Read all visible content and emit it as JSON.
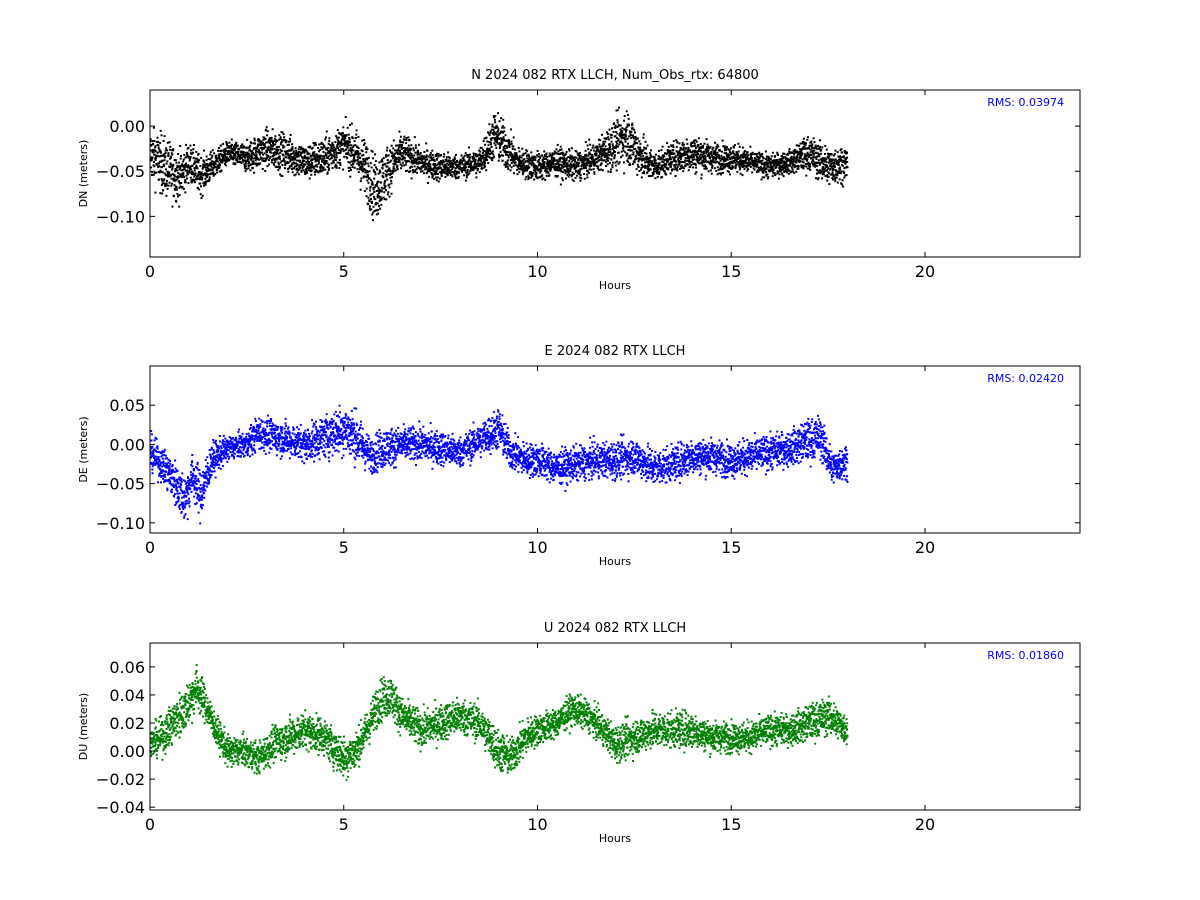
{
  "chart_data": [
    {
      "type": "scatter",
      "title": "N 2024 082 RTX  LLCH, Num_Obs_rtx: 64800",
      "xlabel": "Hours",
      "ylabel": "DN (meters)",
      "xlim": [
        0,
        24
      ],
      "ylim": [
        -0.145,
        0.04
      ],
      "xticks": [
        0,
        5,
        10,
        15,
        20
      ],
      "yticks": [
        0.0,
        -0.05,
        -0.1
      ],
      "ytick_labels": [
        "0.00",
        "−0.05",
        "−0.10"
      ],
      "color": "#000000",
      "rms_label": "RMS:  0.03974",
      "grid": false,
      "x_range_data": [
        0,
        18
      ],
      "profile": {
        "x": [
          0,
          0.25,
          0.5,
          0.8,
          1.0,
          1.3,
          1.6,
          2.0,
          2.5,
          3.0,
          3.5,
          4.0,
          4.5,
          5.0,
          5.3,
          5.6,
          5.8,
          6.0,
          6.2,
          6.5,
          7.0,
          7.5,
          8.0,
          8.5,
          8.9,
          9.1,
          9.5,
          10.0,
          10.5,
          11.0,
          11.5,
          12.0,
          12.3,
          12.6,
          13.0,
          13.5,
          14.0,
          14.5,
          15.0,
          15.5,
          16.0,
          16.5,
          17.0,
          17.5,
          18.0
        ],
        "center": [
          -0.03,
          -0.04,
          -0.05,
          -0.055,
          -0.04,
          -0.055,
          -0.045,
          -0.03,
          -0.035,
          -0.025,
          -0.03,
          -0.04,
          -0.035,
          -0.02,
          -0.03,
          -0.05,
          -0.07,
          -0.06,
          -0.045,
          -0.03,
          -0.04,
          -0.045,
          -0.045,
          -0.04,
          -0.01,
          -0.02,
          -0.04,
          -0.045,
          -0.04,
          -0.045,
          -0.035,
          -0.02,
          -0.01,
          -0.03,
          -0.045,
          -0.035,
          -0.03,
          -0.035,
          -0.035,
          -0.04,
          -0.045,
          -0.04,
          -0.03,
          -0.045,
          -0.04
        ],
        "spread": [
          0.025,
          0.03,
          0.03,
          0.025,
          0.02,
          0.02,
          0.015,
          0.012,
          0.015,
          0.02,
          0.02,
          0.018,
          0.02,
          0.02,
          0.025,
          0.03,
          0.035,
          0.03,
          0.025,
          0.02,
          0.015,
          0.015,
          0.012,
          0.015,
          0.025,
          0.025,
          0.015,
          0.015,
          0.015,
          0.015,
          0.015,
          0.025,
          0.03,
          0.025,
          0.015,
          0.015,
          0.02,
          0.015,
          0.015,
          0.012,
          0.012,
          0.012,
          0.018,
          0.02,
          0.018
        ]
      }
    },
    {
      "type": "scatter",
      "title": "E 2024 082 RTX  LLCH",
      "xlabel": "Hours",
      "ylabel": "DE (meters)",
      "xlim": [
        0,
        24
      ],
      "ylim": [
        -0.113,
        0.1
      ],
      "xticks": [
        0,
        5,
        10,
        15,
        20
      ],
      "yticks": [
        0.05,
        0.0,
        -0.05,
        -0.1
      ],
      "ytick_labels": [
        "0.05",
        "0.00",
        "−0.05",
        "−0.10"
      ],
      "color": "#0000ff",
      "rms_label": "RMS:  0.02420",
      "grid": false,
      "x_range_data": [
        0,
        18
      ],
      "profile": {
        "x": [
          0,
          0.3,
          0.6,
          0.9,
          1.1,
          1.3,
          1.6,
          2.0,
          2.5,
          2.8,
          3.2,
          3.6,
          4.0,
          4.5,
          5.0,
          5.3,
          5.7,
          6.0,
          6.5,
          7.0,
          7.5,
          8.0,
          8.5,
          9.0,
          9.3,
          9.7,
          10.0,
          10.5,
          11.0,
          11.5,
          12.0,
          12.5,
          13.0,
          13.5,
          14.0,
          14.5,
          15.0,
          15.5,
          16.0,
          16.5,
          17.0,
          17.3,
          17.6,
          18.0
        ],
        "center": [
          -0.01,
          -0.025,
          -0.045,
          -0.07,
          -0.04,
          -0.065,
          -0.02,
          -0.005,
          0.0,
          0.015,
          0.01,
          0.005,
          0.0,
          0.01,
          0.02,
          0.01,
          -0.015,
          -0.005,
          0.0,
          0.0,
          -0.005,
          -0.01,
          0.005,
          0.02,
          -0.01,
          -0.02,
          -0.02,
          -0.03,
          -0.025,
          -0.02,
          -0.02,
          -0.015,
          -0.03,
          -0.025,
          -0.015,
          -0.015,
          -0.02,
          -0.015,
          -0.01,
          -0.005,
          0.005,
          0.01,
          -0.03,
          -0.02
        ],
        "spread": [
          0.02,
          0.02,
          0.025,
          0.03,
          0.025,
          0.03,
          0.02,
          0.015,
          0.015,
          0.02,
          0.02,
          0.02,
          0.02,
          0.025,
          0.03,
          0.03,
          0.02,
          0.025,
          0.02,
          0.02,
          0.02,
          0.018,
          0.02,
          0.025,
          0.02,
          0.02,
          0.02,
          0.02,
          0.02,
          0.02,
          0.022,
          0.022,
          0.022,
          0.02,
          0.022,
          0.02,
          0.02,
          0.02,
          0.02,
          0.02,
          0.025,
          0.025,
          0.02,
          0.02
        ]
      }
    },
    {
      "type": "scatter",
      "title": "U 2024 082 RTX  LLCH",
      "xlabel": "Hours",
      "ylabel": "DU (meters)",
      "xlim": [
        0,
        24
      ],
      "ylim": [
        -0.042,
        0.077
      ],
      "xticks": [
        0,
        5,
        10,
        15,
        20
      ],
      "yticks": [
        0.06,
        0.04,
        0.02,
        0.0,
        -0.02,
        -0.04
      ],
      "ytick_labels": [
        "0.06",
        "0.04",
        "0.02",
        "0.00",
        "−0.02",
        "−0.04"
      ],
      "color": "#008000",
      "rms_label": "RMS:  0.01860",
      "grid": false,
      "x_range_data": [
        0,
        18
      ],
      "profile": {
        "x": [
          0,
          0.3,
          0.6,
          0.9,
          1.2,
          1.4,
          1.7,
          2.0,
          2.4,
          2.8,
          3.2,
          3.6,
          4.0,
          4.5,
          5.0,
          5.3,
          5.6,
          5.9,
          6.2,
          6.5,
          7.0,
          7.5,
          8.0,
          8.5,
          9.0,
          9.3,
          9.7,
          10.0,
          10.5,
          10.9,
          11.3,
          11.7,
          12.0,
          12.5,
          13.0,
          13.5,
          14.0,
          14.5,
          15.0,
          15.5,
          16.0,
          16.5,
          17.0,
          17.5,
          18.0
        ],
        "center": [
          0.005,
          0.01,
          0.02,
          0.03,
          0.045,
          0.035,
          0.015,
          0.0,
          0.0,
          -0.005,
          0.005,
          0.01,
          0.015,
          0.01,
          -0.005,
          0.0,
          0.015,
          0.035,
          0.04,
          0.025,
          0.015,
          0.02,
          0.025,
          0.02,
          0.0,
          -0.005,
          0.01,
          0.015,
          0.02,
          0.03,
          0.025,
          0.015,
          0.005,
          0.01,
          0.015,
          0.015,
          0.015,
          0.01,
          0.01,
          0.01,
          0.015,
          0.015,
          0.02,
          0.025,
          0.015
        ],
        "spread": [
          0.01,
          0.012,
          0.014,
          0.015,
          0.015,
          0.012,
          0.01,
          0.01,
          0.01,
          0.01,
          0.012,
          0.012,
          0.012,
          0.012,
          0.014,
          0.012,
          0.012,
          0.014,
          0.014,
          0.012,
          0.012,
          0.012,
          0.012,
          0.012,
          0.014,
          0.012,
          0.012,
          0.01,
          0.01,
          0.01,
          0.01,
          0.01,
          0.012,
          0.012,
          0.012,
          0.012,
          0.012,
          0.01,
          0.01,
          0.01,
          0.01,
          0.01,
          0.012,
          0.012,
          0.01
        ]
      }
    }
  ]
}
